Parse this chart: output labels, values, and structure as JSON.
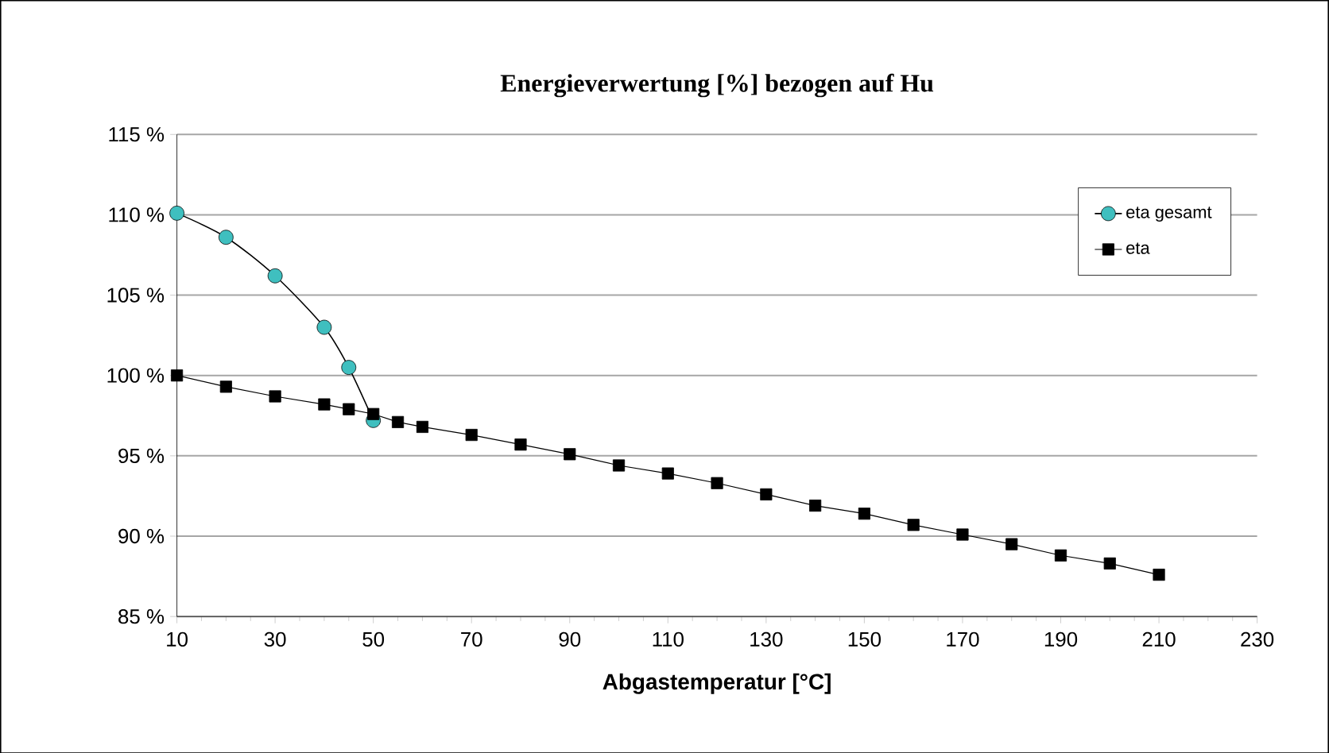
{
  "chart_data": {
    "type": "line",
    "title": "Energieverwertung  [%] bezogen auf Hu",
    "xlabel": "Abgastemperatur [°C]",
    "xlim": [
      10,
      230
    ],
    "xticks": [
      10,
      30,
      50,
      70,
      90,
      110,
      130,
      150,
      170,
      190,
      210,
      230
    ],
    "ylim": [
      85,
      115
    ],
    "yticks": [
      {
        "value": 85,
        "label": "85 %"
      },
      {
        "value": 90,
        "label": "90 %"
      },
      {
        "value": 95,
        "label": "95 %"
      },
      {
        "value": 100,
        "label": "100 %"
      },
      {
        "value": 105,
        "label": "105 %"
      },
      {
        "value": 110,
        "label": "110 %"
      },
      {
        "value": 115,
        "label": "115 %"
      }
    ],
    "grid": "y",
    "legend": "top right",
    "series": [
      {
        "name": "eta gesamt",
        "color": "#3fbfbf",
        "marker": "circle",
        "x": [
          10,
          20,
          30,
          40,
          45,
          50
        ],
        "values": [
          110.1,
          108.6,
          106.2,
          103.0,
          100.5,
          97.2
        ]
      },
      {
        "name": "eta",
        "color": "#000000",
        "marker": "square",
        "x": [
          10,
          20,
          30,
          40,
          45,
          50,
          55,
          60,
          70,
          80,
          90,
          100,
          110,
          120,
          130,
          140,
          150,
          160,
          170,
          180,
          190,
          200,
          210
        ],
        "values": [
          100.0,
          99.3,
          98.7,
          98.2,
          97.9,
          97.6,
          97.1,
          96.8,
          96.3,
          95.7,
          95.1,
          94.4,
          93.9,
          93.3,
          92.6,
          91.9,
          91.4,
          90.7,
          90.1,
          89.5,
          88.8,
          88.3,
          87.6
        ]
      }
    ]
  }
}
